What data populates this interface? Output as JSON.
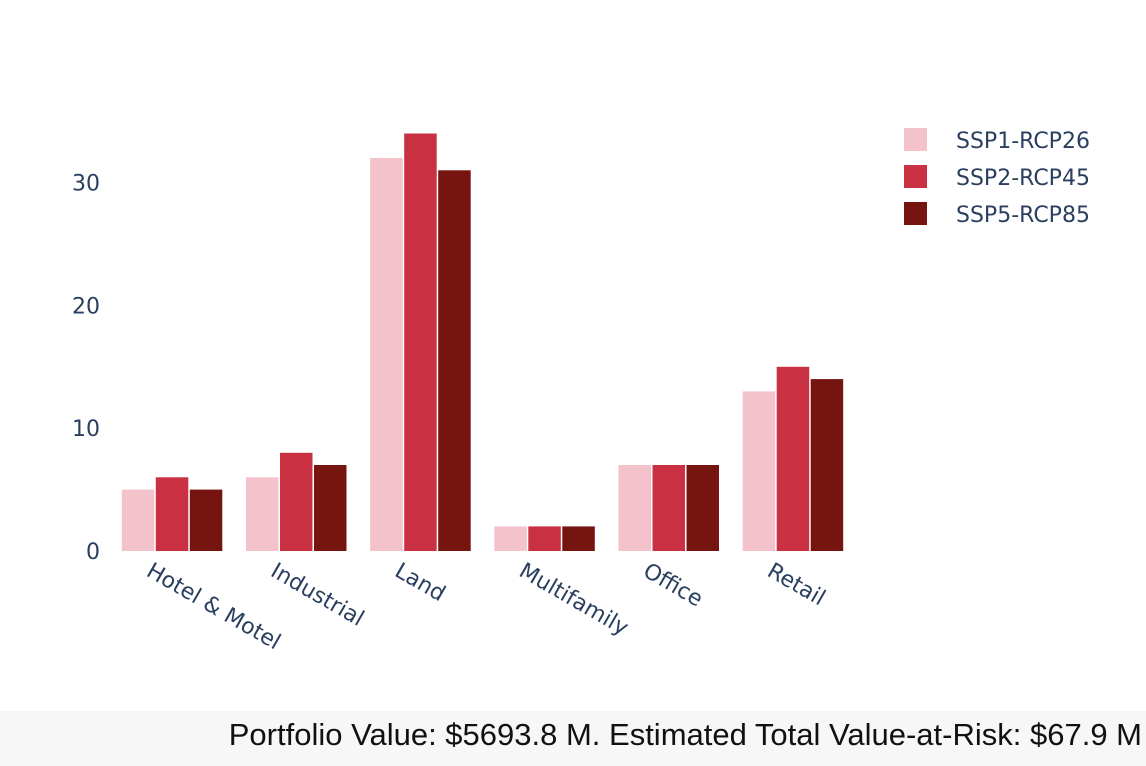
{
  "chart_data": {
    "type": "bar",
    "categories": [
      "Hotel & Motel",
      "Industrial",
      "Land",
      "Multifamily",
      "Office",
      "Retail"
    ],
    "series": [
      {
        "name": "SSP1-RCP26",
        "color": "#f4c2cb",
        "values": [
          5,
          6,
          32,
          2,
          7,
          13
        ]
      },
      {
        "name": "SSP2-RCP45",
        "color": "#c93042",
        "values": [
          6,
          8,
          34,
          2,
          7,
          15
        ]
      },
      {
        "name": "SSP5-RCP85",
        "color": "#76140f",
        "values": [
          5,
          7,
          31,
          2,
          7,
          14
        ]
      }
    ],
    "yticks": [
      0,
      10,
      20,
      30
    ],
    "ylim": [
      0,
      36
    ],
    "legend_position": "top-right",
    "grid": false
  },
  "footer": {
    "text": "Portfolio Value: $5693.8 M. Estimated Total Value-at-Risk: $67.9 M"
  }
}
